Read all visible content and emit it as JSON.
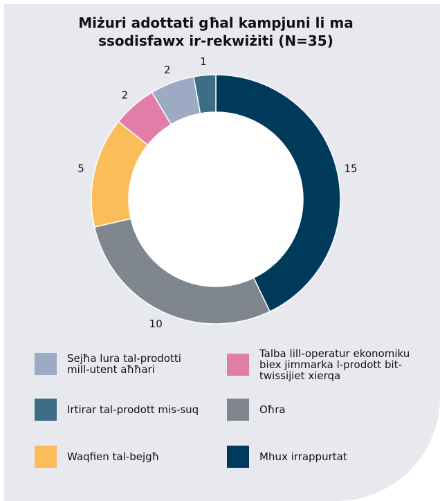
{
  "chart_data": {
    "type": "pie",
    "donut": true,
    "title_lines": [
      "Miżuri adottati għal kampjuni li ma",
      "ssodisfawx ir-rekwiżiti (N=35)"
    ],
    "title": "Miżuri adottati għal kampjuni li ma ssodisfawx ir-rekwiżiti (N=35)",
    "slices": [
      {
        "label": "Mhux irrappurtat",
        "value": 15,
        "color": "#003a5a"
      },
      {
        "label": "Oħra",
        "value": 10,
        "color": "#808690"
      },
      {
        "label": "Waqfien tal-bejgħ",
        "value": 5,
        "color": "#fbbd5a"
      },
      {
        "label": "Talba lill-operatur ekonomiku\nbiex jimmarka l-prodott bit-\ntwissijiet xierqa",
        "value": 2,
        "color": "#e17ea8"
      },
      {
        "label": "Sejħa lura tal-prodotti\nmill-utent aħħari",
        "value": 2,
        "color": "#9caac3"
      },
      {
        "label": "Irtirar tal-prodott mis-suq",
        "value": 1,
        "color": "#3d6e86"
      }
    ],
    "data_labels": [
      "15",
      "10",
      "5",
      "2",
      "2",
      "1"
    ],
    "legend_position": "bottom"
  }
}
